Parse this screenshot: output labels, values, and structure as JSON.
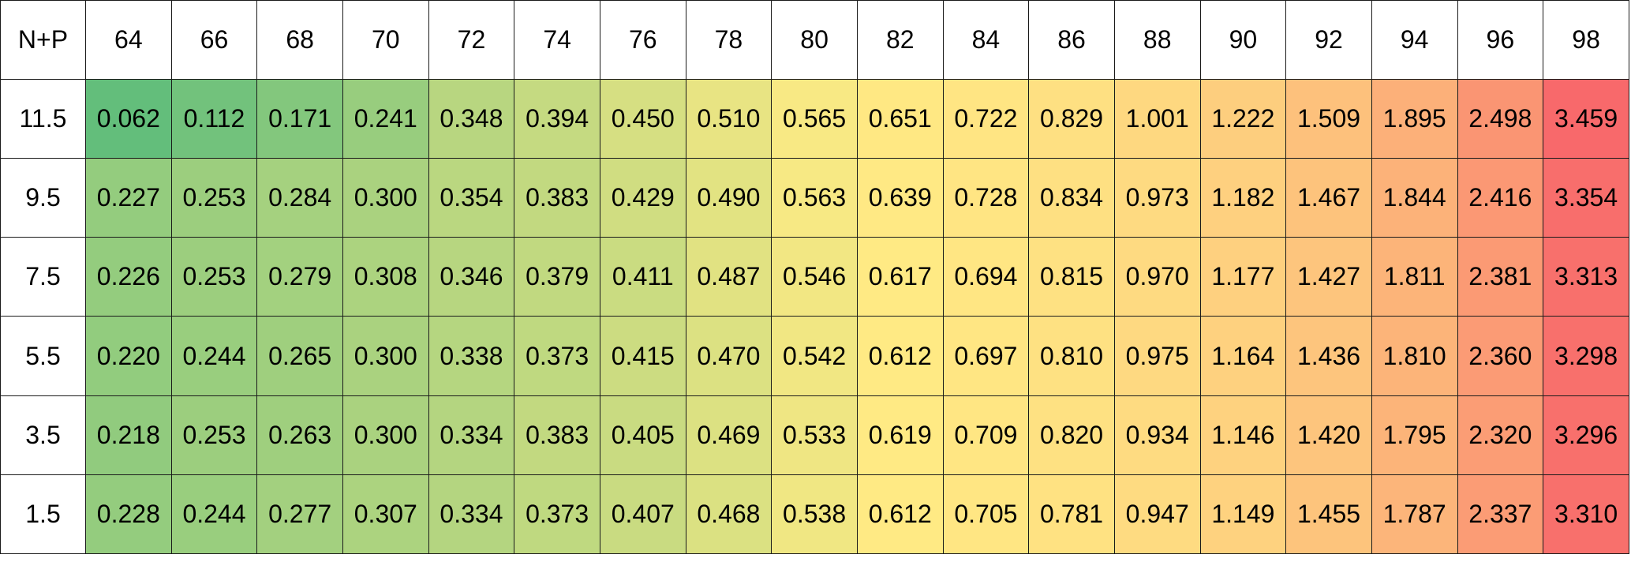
{
  "chart_data": {
    "type": "heatmap",
    "corner_label": "N+P",
    "columns": [
      "64",
      "66",
      "68",
      "70",
      "72",
      "74",
      "76",
      "78",
      "80",
      "82",
      "84",
      "86",
      "88",
      "90",
      "92",
      "94",
      "96",
      "98"
    ],
    "rows": [
      "11.5",
      "9.5",
      "7.5",
      "5.5",
      "3.5",
      "1.5"
    ],
    "values": [
      [
        "0.062",
        "0.112",
        "0.171",
        "0.241",
        "0.348",
        "0.394",
        "0.450",
        "0.510",
        "0.565",
        "0.651",
        "0.722",
        "0.829",
        "1.001",
        "1.222",
        "1.509",
        "1.895",
        "2.498",
        "3.459"
      ],
      [
        "0.227",
        "0.253",
        "0.284",
        "0.300",
        "0.354",
        "0.383",
        "0.429",
        "0.490",
        "0.563",
        "0.639",
        "0.728",
        "0.834",
        "0.973",
        "1.182",
        "1.467",
        "1.844",
        "2.416",
        "3.354"
      ],
      [
        "0.226",
        "0.253",
        "0.279",
        "0.308",
        "0.346",
        "0.379",
        "0.411",
        "0.487",
        "0.546",
        "0.617",
        "0.694",
        "0.815",
        "0.970",
        "1.177",
        "1.427",
        "1.811",
        "2.381",
        "3.313"
      ],
      [
        "0.220",
        "0.244",
        "0.265",
        "0.300",
        "0.338",
        "0.373",
        "0.415",
        "0.470",
        "0.542",
        "0.612",
        "0.697",
        "0.810",
        "0.975",
        "1.164",
        "1.436",
        "1.810",
        "2.360",
        "3.298"
      ],
      [
        "0.218",
        "0.253",
        "0.263",
        "0.300",
        "0.334",
        "0.383",
        "0.405",
        "0.469",
        "0.533",
        "0.619",
        "0.709",
        "0.820",
        "0.934",
        "1.146",
        "1.420",
        "1.795",
        "2.320",
        "3.296"
      ],
      [
        "0.228",
        "0.244",
        "0.277",
        "0.307",
        "0.334",
        "0.373",
        "0.407",
        "0.468",
        "0.538",
        "0.612",
        "0.705",
        "0.781",
        "0.947",
        "1.149",
        "1.455",
        "1.787",
        "2.337",
        "3.310"
      ]
    ],
    "color_scale": {
      "low": "#63be7b",
      "mid": "#ffeb84",
      "high": "#f8696b"
    },
    "grid": true
  }
}
